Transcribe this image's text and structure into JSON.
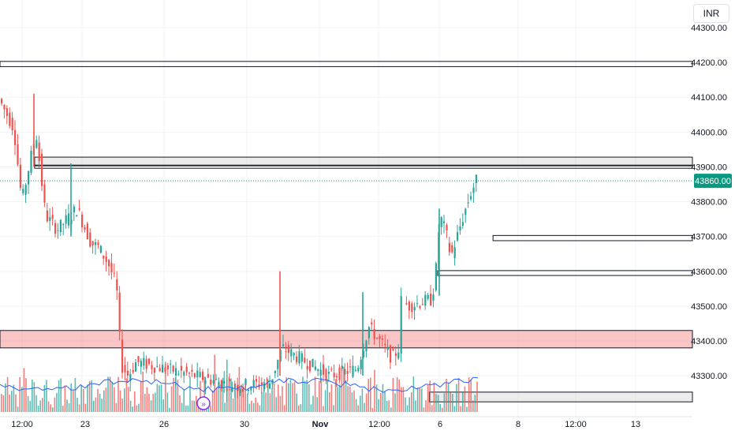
{
  "currency": "INR",
  "chart_data": {
    "type": "candlestick",
    "price_axis": {
      "ticks": [
        44300,
        44200,
        44100,
        44000,
        43900,
        43800,
        43700,
        43600,
        43500,
        43400,
        43300
      ],
      "tick_labels": [
        "44300.00",
        "44200.00",
        "44100.00",
        "44000.00",
        "43900.00",
        "43800.00",
        "43700.00",
        "43600.00",
        "43500.00",
        "43400.00",
        "43300.00"
      ],
      "range": [
        43225,
        44325
      ]
    },
    "time_axis": {
      "labels": [
        "12:00",
        "23",
        "26",
        "30",
        "Nov",
        "12:00",
        "6",
        "8",
        "12:00",
        "13"
      ],
      "bold": [
        false,
        false,
        false,
        false,
        true,
        false,
        false,
        false,
        false,
        false
      ]
    },
    "last_price": {
      "value": 43860,
      "label": "43860.00"
    },
    "zones": [
      {
        "type": "outline",
        "top": 44203,
        "bottom": 44188
      },
      {
        "type": "gray",
        "top": 43928,
        "bottom": 43903,
        "start": 0.05
      },
      {
        "type": "outline",
        "top": 43905,
        "bottom": 43896,
        "start": 0.05
      },
      {
        "type": "outline",
        "top": 43703,
        "bottom": 43688,
        "start": 0.712
      },
      {
        "type": "outline",
        "top": 43602,
        "bottom": 43588,
        "start": 0.632
      },
      {
        "type": "red",
        "top": 43430,
        "bottom": 43380
      },
      {
        "type": "gray",
        "top": 43253,
        "bottom": 43225,
        "start": 0.62
      }
    ],
    "colors": {
      "up": "#26a69a",
      "down": "#ef5350",
      "volume_ma": "#2962ff",
      "last_price": "#089981"
    },
    "grid": true
  }
}
